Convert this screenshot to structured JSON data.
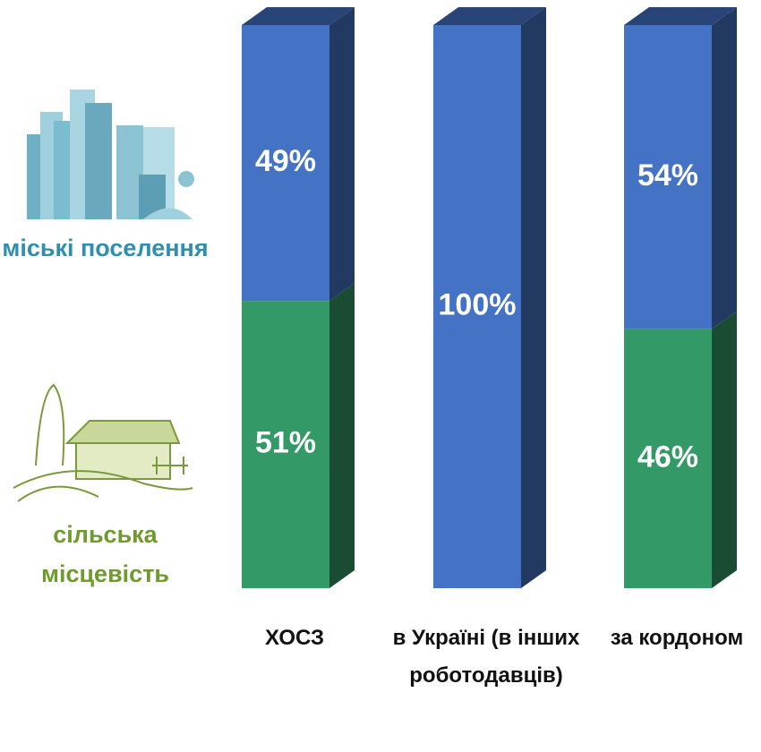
{
  "chart_data": {
    "type": "stacked_bar_3d",
    "categories": [
      "ХОСЗ",
      "в Україні (в інших роботодавців)",
      "за кордоном"
    ],
    "ylim": [
      0,
      100
    ],
    "series": [
      {
        "name": "сільська місцевість",
        "color": "#339966",
        "label_color": "#6e9a2e",
        "values": [
          51,
          0,
          46
        ],
        "value_labels": [
          "51%",
          null,
          "46%"
        ]
      },
      {
        "name": "міські поселення",
        "color": "#4472c4",
        "label_color": "#2f8fae",
        "values": [
          49,
          100,
          54
        ],
        "value_labels": [
          "49%",
          "100%",
          "54%"
        ]
      }
    ]
  }
}
